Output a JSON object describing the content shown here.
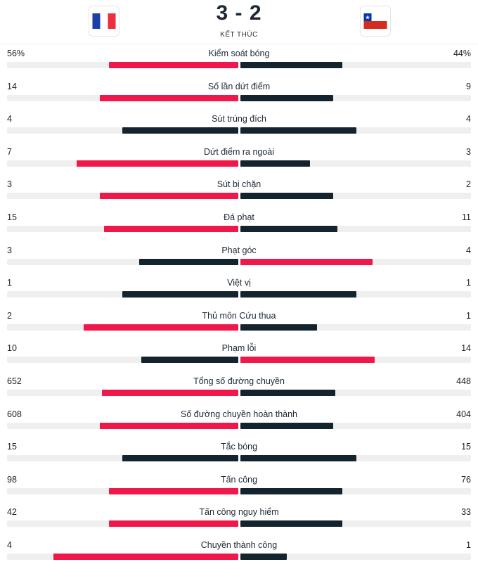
{
  "match": {
    "score": "3 - 2",
    "status": "KẾT THÚC",
    "home_flag": "france-flag-icon",
    "away_flag": "chile-flag-icon"
  },
  "colors": {
    "leader": "#f0174b",
    "trailer": "#13242f",
    "track": "#efefef"
  },
  "stats": [
    {
      "name": "Kiểm soát bóng",
      "home": "56%",
      "away": "44%",
      "home_share": 0.56,
      "away_share": 0.44
    },
    {
      "name": "Số lần dứt điểm",
      "home": "14",
      "away": "9",
      "home_share": 0.6,
      "away_share": 0.4
    },
    {
      "name": "Sút trúng đích",
      "home": "4",
      "away": "4",
      "home_share": 0.5,
      "away_share": 0.5
    },
    {
      "name": "Dứt điểm ra ngoài",
      "home": "7",
      "away": "3",
      "home_share": 0.7,
      "away_share": 0.3
    },
    {
      "name": "Sút bị chặn",
      "home": "3",
      "away": "2",
      "home_share": 0.6,
      "away_share": 0.4
    },
    {
      "name": "Đá phạt",
      "home": "15",
      "away": "11",
      "home_share": 0.58,
      "away_share": 0.42
    },
    {
      "name": "Phạt góc",
      "home": "3",
      "away": "4",
      "home_share": 0.43,
      "away_share": 0.57
    },
    {
      "name": "Việt vị",
      "home": "1",
      "away": "1",
      "home_share": 0.5,
      "away_share": 0.5
    },
    {
      "name": "Thủ môn Cứu thua",
      "home": "2",
      "away": "1",
      "home_share": 0.67,
      "away_share": 0.33
    },
    {
      "name": "Phạm lỗi",
      "home": "10",
      "away": "14",
      "home_share": 0.42,
      "away_share": 0.58
    },
    {
      "name": "Tổng số đường chuyền",
      "home": "652",
      "away": "448",
      "home_share": 0.59,
      "away_share": 0.41
    },
    {
      "name": "Số đường chuyền hoàn thành",
      "home": "608",
      "away": "404",
      "home_share": 0.6,
      "away_share": 0.4
    },
    {
      "name": "Tắc bóng",
      "home": "15",
      "away": "15",
      "home_share": 0.5,
      "away_share": 0.5
    },
    {
      "name": "Tấn công",
      "home": "98",
      "away": "76",
      "home_share": 0.56,
      "away_share": 0.44
    },
    {
      "name": "Tấn công nguy hiểm",
      "home": "42",
      "away": "33",
      "home_share": 0.56,
      "away_share": 0.44
    },
    {
      "name": "Chuyền thành công",
      "home": "4",
      "away": "1",
      "home_share": 0.8,
      "away_share": 0.2
    }
  ]
}
